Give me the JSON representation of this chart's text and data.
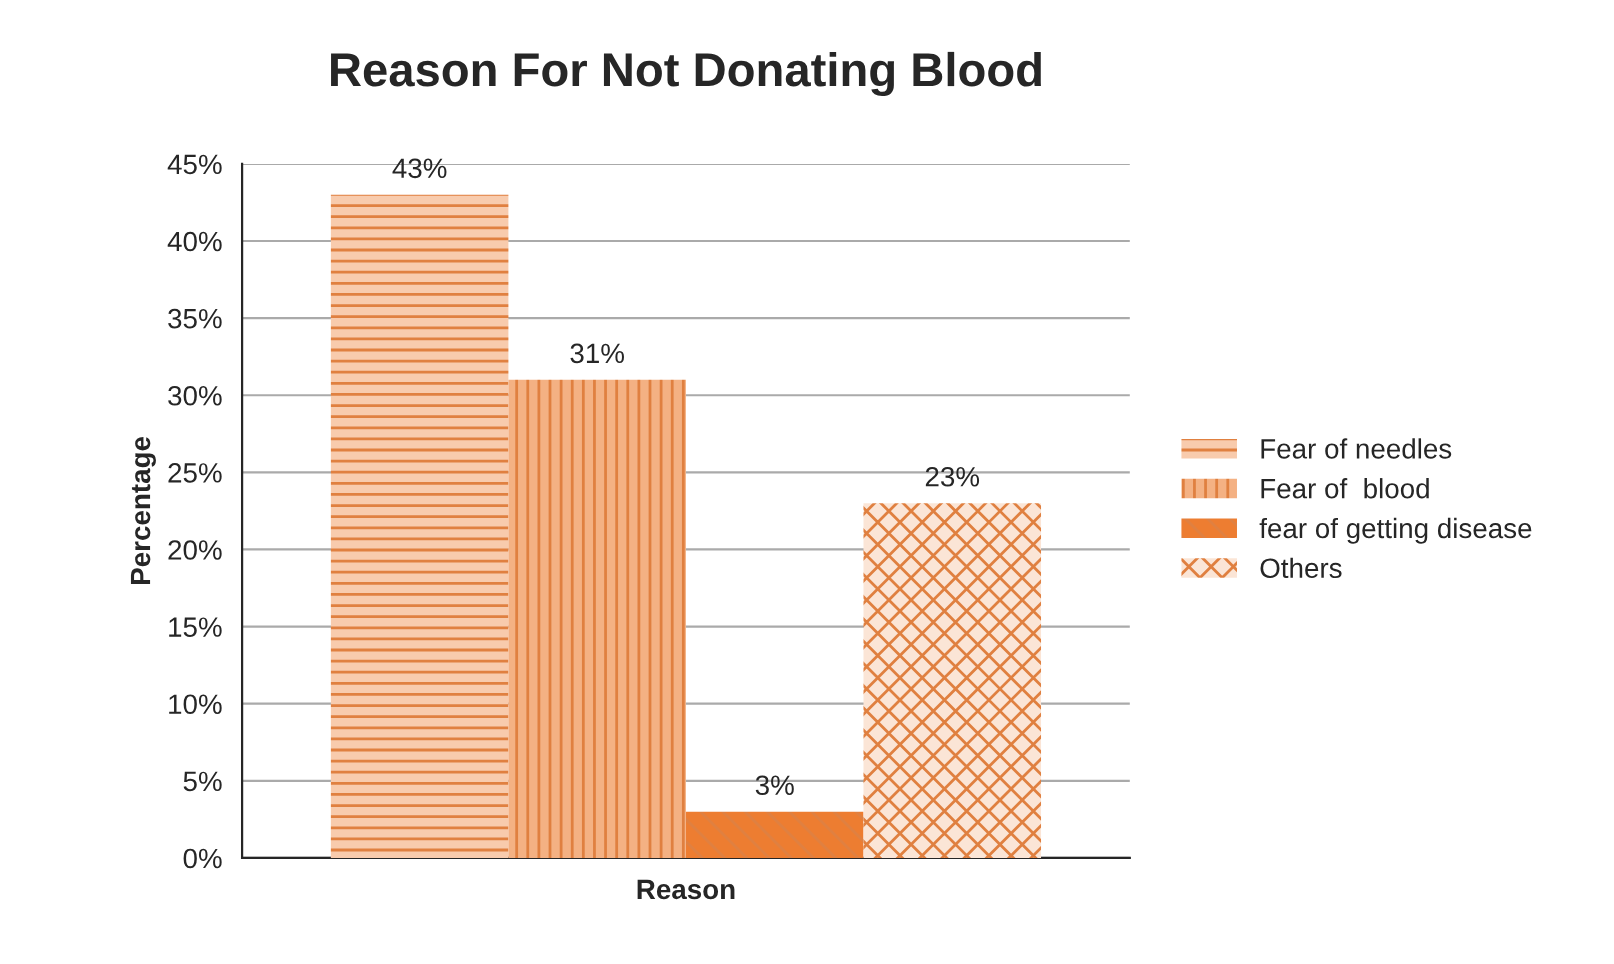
{
  "chart_data": {
    "type": "bar",
    "title": "Reason For Not Donating Blood",
    "xlabel": "Reason",
    "ylabel": "Percentage",
    "categories": [
      null
    ],
    "series": [
      {
        "name": "Fear of needles",
        "color": "#f8cbad",
        "values": [
          43
        ],
        "value_labels": [
          "43%"
        ]
      },
      {
        "name": "Fear of  blood",
        "color": "#f4b183",
        "values": [
          31
        ],
        "value_labels": [
          "31%"
        ]
      },
      {
        "name": "fear of getting disease",
        "color": "#ed7d31",
        "values": [
          3
        ],
        "value_labels": [
          "3%"
        ]
      },
      {
        "name": "Others",
        "color": "#fbe5d6",
        "values": [
          23
        ],
        "value_labels": [
          "23%"
        ]
      }
    ],
    "ylim": [
      0,
      45
    ],
    "yticks": [
      {
        "value": 0,
        "label": "0%"
      },
      {
        "value": 5,
        "label": "5%"
      },
      {
        "value": 10,
        "label": "10%"
      },
      {
        "value": 15,
        "label": "15%"
      },
      {
        "value": 20,
        "label": "20%"
      },
      {
        "value": 25,
        "label": "25%"
      },
      {
        "value": 30,
        "label": "30%"
      },
      {
        "value": 35,
        "label": "35%"
      },
      {
        "value": 40,
        "label": "40%"
      },
      {
        "value": 45,
        "label": "45%"
      }
    ],
    "grid": "y",
    "legend": "right"
  }
}
